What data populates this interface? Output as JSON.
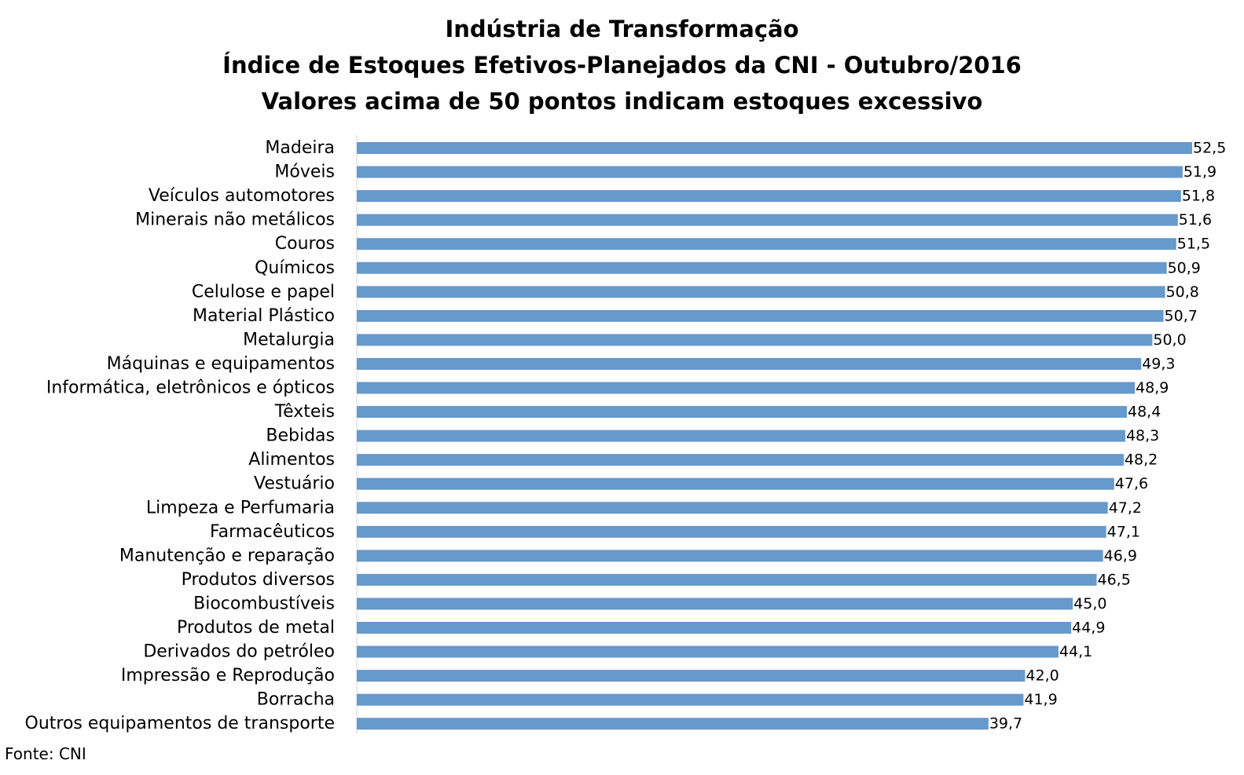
{
  "chart_data": {
    "type": "bar",
    "orientation": "horizontal",
    "title": [
      "Indústria de Transformação",
      "Índice de Estoques Efetivos-Planejados da CNI - Outubro/2016",
      "Valores acima de 50 pontos indicam estoques excessivo"
    ],
    "categories": [
      "Madeira",
      "Móveis",
      "Veículos automotores",
      "Minerais não metálicos",
      "Couros",
      "Químicos",
      "Celulose e papel",
      "Material Plástico",
      "Metalurgia",
      "Máquinas e equipamentos",
      "Informática, eletrônicos e ópticos",
      "Têxteis",
      "Bebidas",
      "Alimentos",
      "Vestuário",
      "Limpeza e Perfumaria",
      "Farmacêuticos",
      "Manutenção e reparação",
      "Produtos diversos",
      "Biocombustíveis",
      "Produtos de metal",
      "Derivados do petróleo",
      "Impressão e Reprodução ",
      "Borracha",
      "Outros equipamentos de transporte"
    ],
    "values": [
      52.5,
      51.9,
      51.8,
      51.6,
      51.5,
      50.9,
      50.8,
      50.7,
      50.0,
      49.3,
      48.9,
      48.4,
      48.3,
      48.2,
      47.6,
      47.2,
      47.1,
      46.9,
      46.5,
      45.0,
      44.9,
      44.1,
      42.0,
      41.9,
      39.7
    ],
    "value_labels": [
      "52,5",
      "51,9",
      "51,8",
      "51,6",
      "51,5",
      "50,9",
      "50,8",
      "50,7",
      "50,0",
      "49,3",
      "48,9",
      "48,4",
      "48,3",
      "48,2",
      "47,6",
      "47,2",
      "47,1",
      "46,9",
      "46,5",
      "45,0",
      "44,9",
      "44,1",
      "42,0",
      "41,9",
      "39,7"
    ],
    "xlim": [
      0,
      52.5
    ],
    "grid": false,
    "legend": "none",
    "bar_color": "#6699CC"
  },
  "source": "Fonte: CNI"
}
